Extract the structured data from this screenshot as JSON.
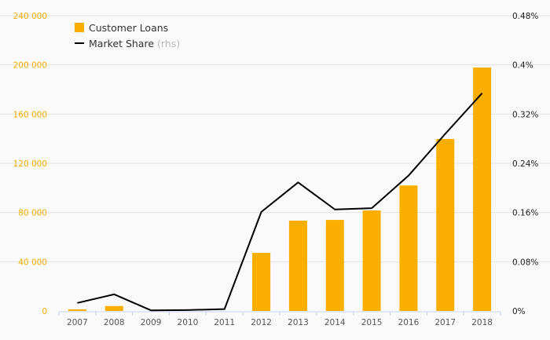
{
  "chart_data": {
    "type": "bar",
    "title": "",
    "categories": [
      "2007",
      "2008",
      "2009",
      "2010",
      "2011",
      "2012",
      "2013",
      "2014",
      "2015",
      "2016",
      "2017",
      "2018"
    ],
    "series": [
      {
        "name": "Customer Loans",
        "type": "bar",
        "axis": "left",
        "color": "#f9ae00",
        "values": [
          1300,
          4000,
          0,
          0,
          0,
          47200,
          73400,
          74000,
          81700,
          102000,
          139800,
          197900
        ]
      },
      {
        "name": "Market Share",
        "suffix": "(rhs)",
        "type": "line",
        "axis": "right",
        "color": "#000000",
        "values": [
          0.013,
          0.027,
          0.001,
          0.0015,
          0.003,
          0.161,
          0.209,
          0.165,
          0.167,
          0.22,
          0.288,
          0.354
        ]
      }
    ],
    "left_axis": {
      "range": [
        0,
        240000
      ],
      "ticks": [
        "0",
        "40 000",
        "80 000",
        "120 000",
        "160 000",
        "200 000",
        "240 000"
      ],
      "color": "#f5ac00"
    },
    "right_axis": {
      "range": [
        0,
        0.48
      ],
      "ticks": [
        "0%",
        "0.08%",
        "0.16%",
        "0.24%",
        "0.32%",
        "0.4%",
        "0.48%"
      ]
    },
    "grid": true,
    "legend": {
      "placement": "top-left",
      "items": [
        "Customer Loans",
        "Market Share"
      ],
      "suffix": "(rhs)"
    }
  }
}
